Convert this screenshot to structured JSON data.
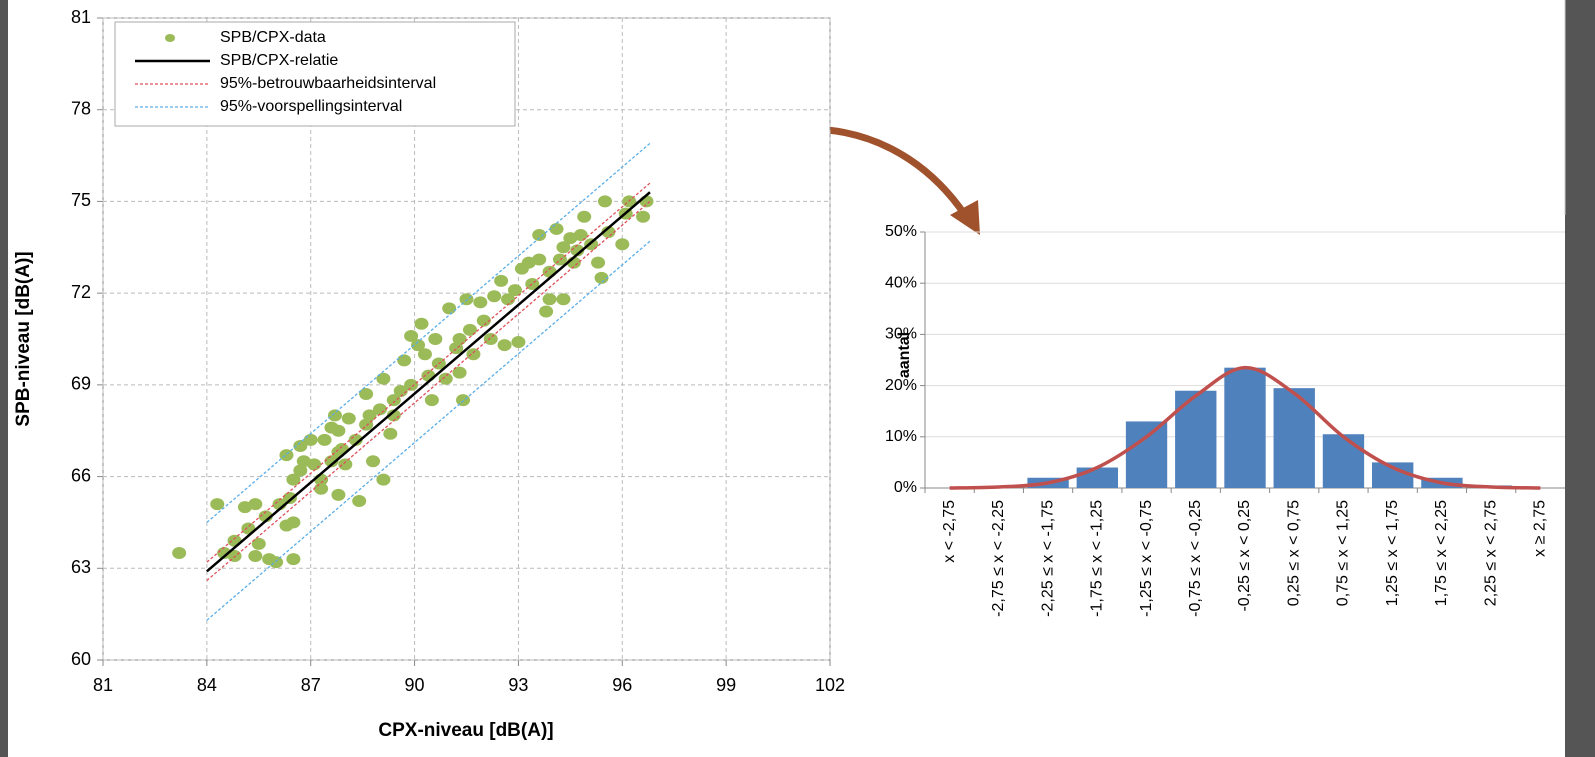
{
  "chart_data": [
    {
      "type": "scatter",
      "xlabel": "CPX-niveau [dB(A)]",
      "ylabel": "SPB-niveau [dB(A)]",
      "xlim": [
        81,
        102
      ],
      "xticks": [
        81,
        84,
        87,
        90,
        93,
        96,
        99,
        102
      ],
      "ylim": [
        60,
        81
      ],
      "yticks": [
        60,
        63,
        66,
        69,
        72,
        75,
        78,
        81
      ],
      "grid": true,
      "legend": "upper left",
      "series": [
        {
          "name": "SPB/CPX-data",
          "color": "#9bbb59",
          "mode": "markers",
          "x": [
            83.2,
            84.3,
            84.5,
            84.8,
            84.8,
            85.1,
            85.4,
            85.2,
            85.5,
            85.7,
            85.4,
            85.8,
            86.1,
            86.3,
            86.4,
            86.5,
            86.3,
            86.5,
            86.7,
            86.8,
            87.0,
            87.1,
            87.3,
            87.3,
            87.4,
            87.6,
            87.7,
            87.8,
            87.9,
            88.0,
            87.8,
            88.1,
            88.3,
            88.4,
            88.6,
            88.7,
            88.8,
            89.0,
            89.1,
            89.1,
            89.3,
            89.4,
            89.6,
            89.7,
            89.9,
            89.9,
            90.1,
            90.2,
            90.3,
            90.4,
            90.5,
            90.6,
            90.7,
            90.9,
            91.0,
            91.2,
            91.3,
            91.4,
            91.5,
            91.6,
            91.7,
            91.9,
            92.0,
            92.2,
            92.3,
            92.5,
            92.6,
            92.7,
            92.9,
            93.0,
            93.1,
            93.3,
            93.4,
            93.6,
            93.6,
            93.8,
            93.9,
            93.9,
            94.1,
            94.2,
            94.3,
            94.3,
            94.5,
            94.6,
            94.7,
            94.8,
            94.9,
            95.1,
            95.3,
            95.4,
            95.5,
            95.6,
            96.0,
            96.1,
            96.2,
            96.6,
            96.7,
            88.6,
            89.4,
            87.6,
            86.7,
            87.8,
            91.3,
            86.0,
            86.5
          ],
          "values": [
            63.5,
            65.1,
            63.5,
            63.9,
            63.4,
            65.0,
            65.1,
            64.3,
            63.8,
            64.7,
            63.4,
            63.3,
            65.1,
            64.4,
            65.3,
            64.5,
            66.7,
            65.9,
            66.2,
            66.5,
            67.2,
            66.4,
            65.9,
            65.6,
            67.2,
            66.5,
            68.0,
            67.5,
            66.9,
            66.4,
            65.4,
            67.9,
            67.2,
            65.2,
            67.7,
            68.0,
            66.5,
            68.2,
            69.2,
            65.9,
            67.4,
            68.5,
            68.8,
            69.8,
            69.0,
            70.6,
            70.3,
            71.0,
            70.0,
            69.3,
            68.5,
            70.5,
            69.7,
            69.2,
            71.5,
            70.2,
            69.4,
            68.5,
            71.8,
            70.8,
            70.0,
            71.7,
            71.1,
            70.5,
            71.9,
            72.4,
            70.3,
            71.8,
            72.1,
            70.4,
            72.8,
            73.0,
            72.3,
            73.9,
            73.1,
            71.4,
            71.8,
            72.7,
            74.1,
            73.1,
            73.5,
            71.8,
            73.8,
            73.0,
            73.4,
            73.9,
            74.5,
            73.6,
            73.0,
            72.5,
            75.0,
            74.0,
            73.6,
            74.6,
            75.0,
            74.5,
            75.0,
            68.7,
            68.0,
            67.6,
            67.0,
            66.8,
            70.5,
            63.2,
            63.3
          ]
        },
        {
          "name": "SPB/CPX-relatie",
          "color": "#000000",
          "mode": "line",
          "x": [
            84,
            96.8
          ],
          "values": [
            62.9,
            75.3
          ]
        },
        {
          "name": "95%-betrouwbaarheidsinterval",
          "color": "#e0505a",
          "mode": "band",
          "x": [
            84,
            96.8
          ],
          "upper": [
            63.2,
            75.6
          ],
          "lower": [
            62.6,
            75.0
          ]
        },
        {
          "name": "95%-voorspellingsinterval",
          "color": "#5aaee8",
          "mode": "band",
          "x": [
            84,
            96.8
          ],
          "upper": [
            64.5,
            76.9
          ],
          "lower": [
            61.3,
            73.7
          ]
        }
      ]
    },
    {
      "type": "bar",
      "ylabel": "aantal",
      "categories": [
        "x < -2,75",
        "-2,75 ≤ x < -2,25",
        "-2,25 ≤ x < -1,75",
        "-1,75 ≤ x < -1,25",
        "-1,25 ≤ x < -0,75",
        "-0,75 ≤ x < -0,25",
        "-0,25 ≤ x < 0,25",
        "0,25 ≤ x < 0,75",
        "0,75 ≤ x < 1,25",
        "1,25 ≤ x < 1,75",
        "1,75 ≤ x < 2,25",
        "2,25 ≤ x < 2,75",
        "x ≥ 2,75"
      ],
      "values": [
        0,
        0,
        2,
        4,
        13,
        19,
        23.5,
        19.5,
        10.5,
        5,
        2,
        0.5,
        0
      ],
      "color": "#4f81bd",
      "fit": {
        "color": "#c0504d",
        "values": [
          0,
          0.2,
          1,
          4,
          10,
          18,
          23.5,
          18.5,
          10,
          4,
          1,
          0.2,
          0
        ]
      },
      "ylim": [
        0,
        50
      ],
      "yticks": [
        {
          "value": 0,
          "label": "0%"
        },
        {
          "value": 10,
          "label": "10%"
        },
        {
          "value": 20,
          "label": "20%"
        },
        {
          "value": 30,
          "label": "30%"
        },
        {
          "value": 40,
          "label": "40%"
        },
        {
          "value": 50,
          "label": "50%"
        }
      ],
      "grid": true
    }
  ]
}
